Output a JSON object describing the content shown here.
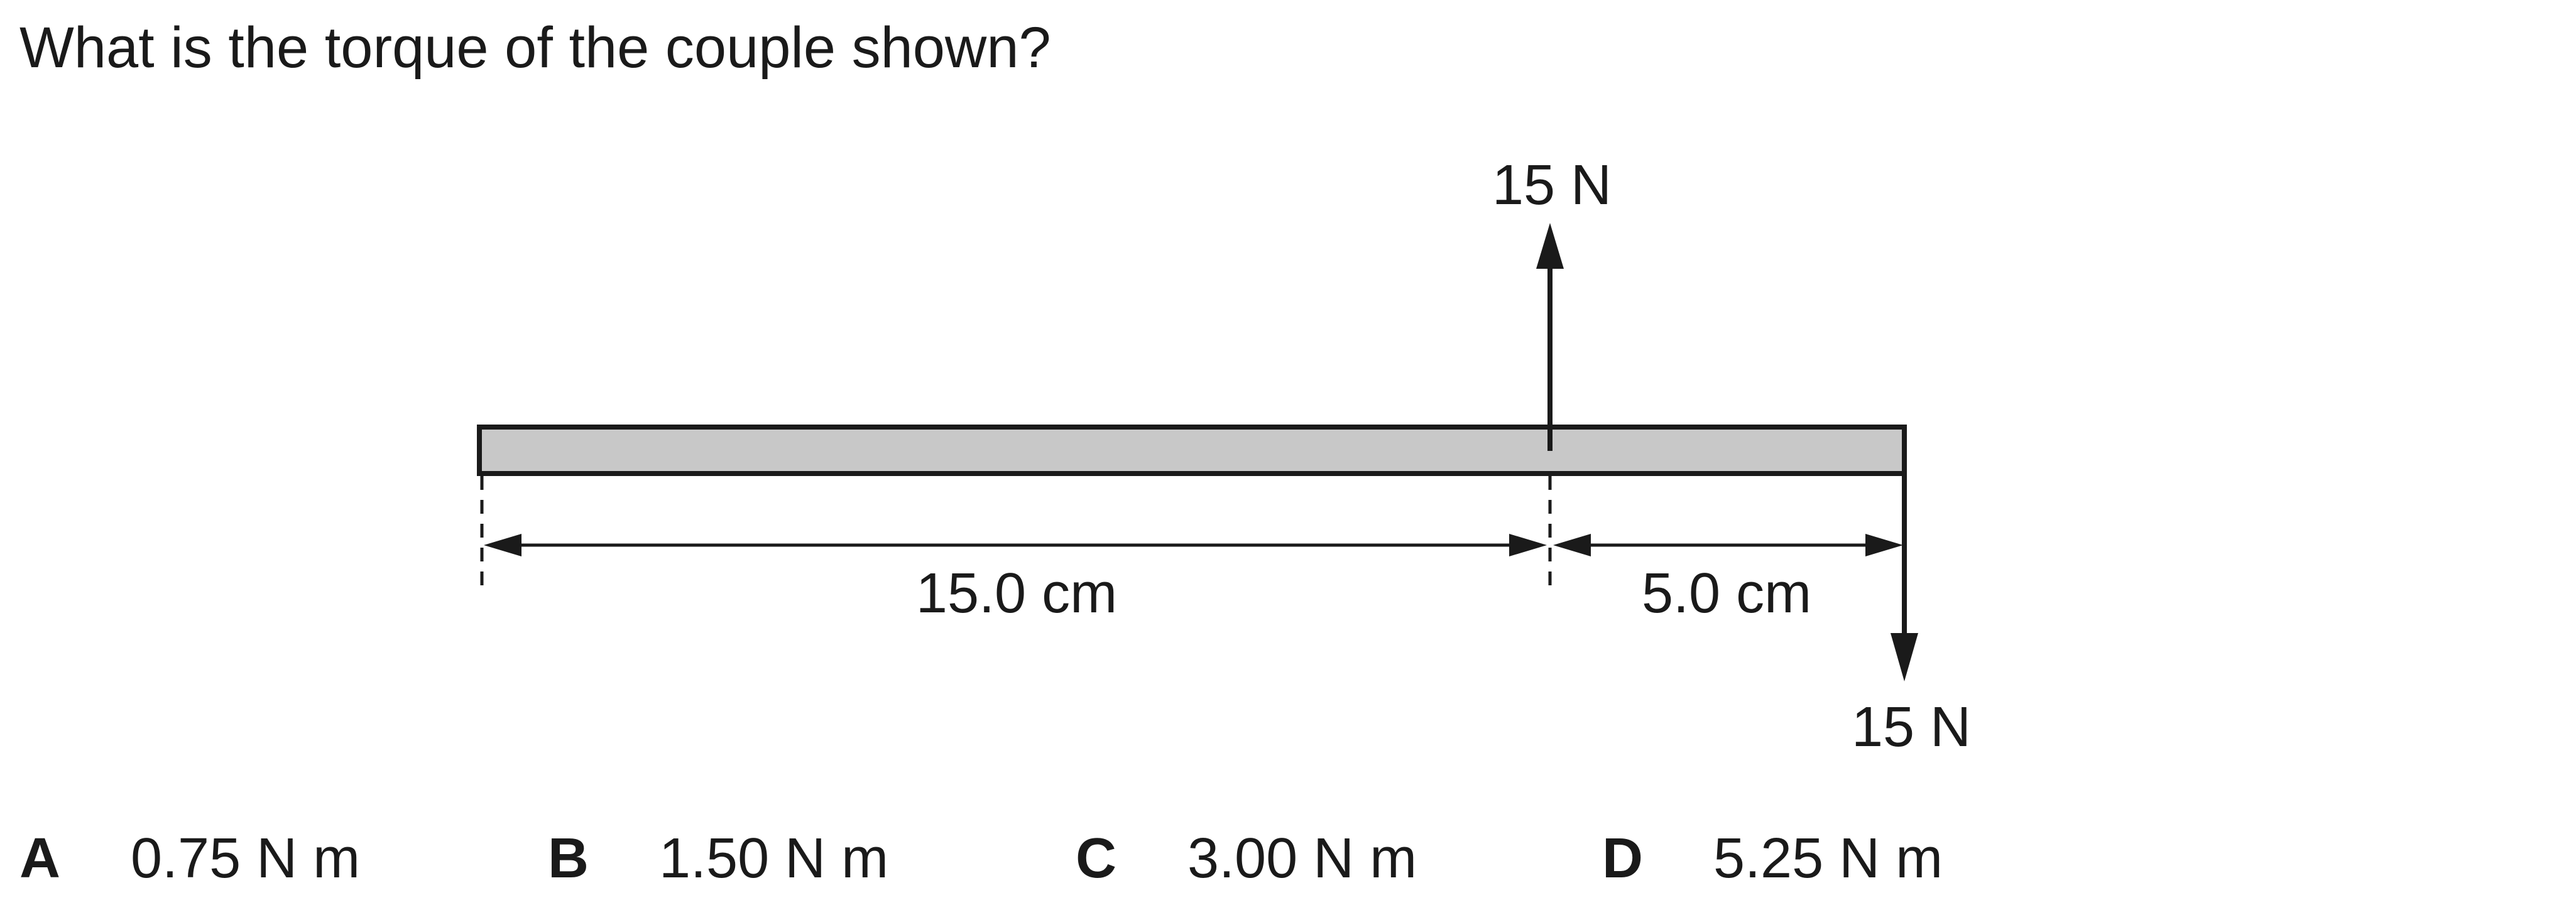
{
  "question": {
    "text": "What is the torque of the couple shown?"
  },
  "diagram": {
    "force_up_label": "15 N",
    "force_down_label": "15 N",
    "distance_left_label": "15.0 cm",
    "distance_right_label": "5.0 cm"
  },
  "options": [
    {
      "letter": "A",
      "value": "0.75 N m"
    },
    {
      "letter": "B",
      "value": "1.50 N m"
    },
    {
      "letter": "C",
      "value": "3.00 N m"
    },
    {
      "letter": "D",
      "value": "5.25 N m"
    }
  ]
}
